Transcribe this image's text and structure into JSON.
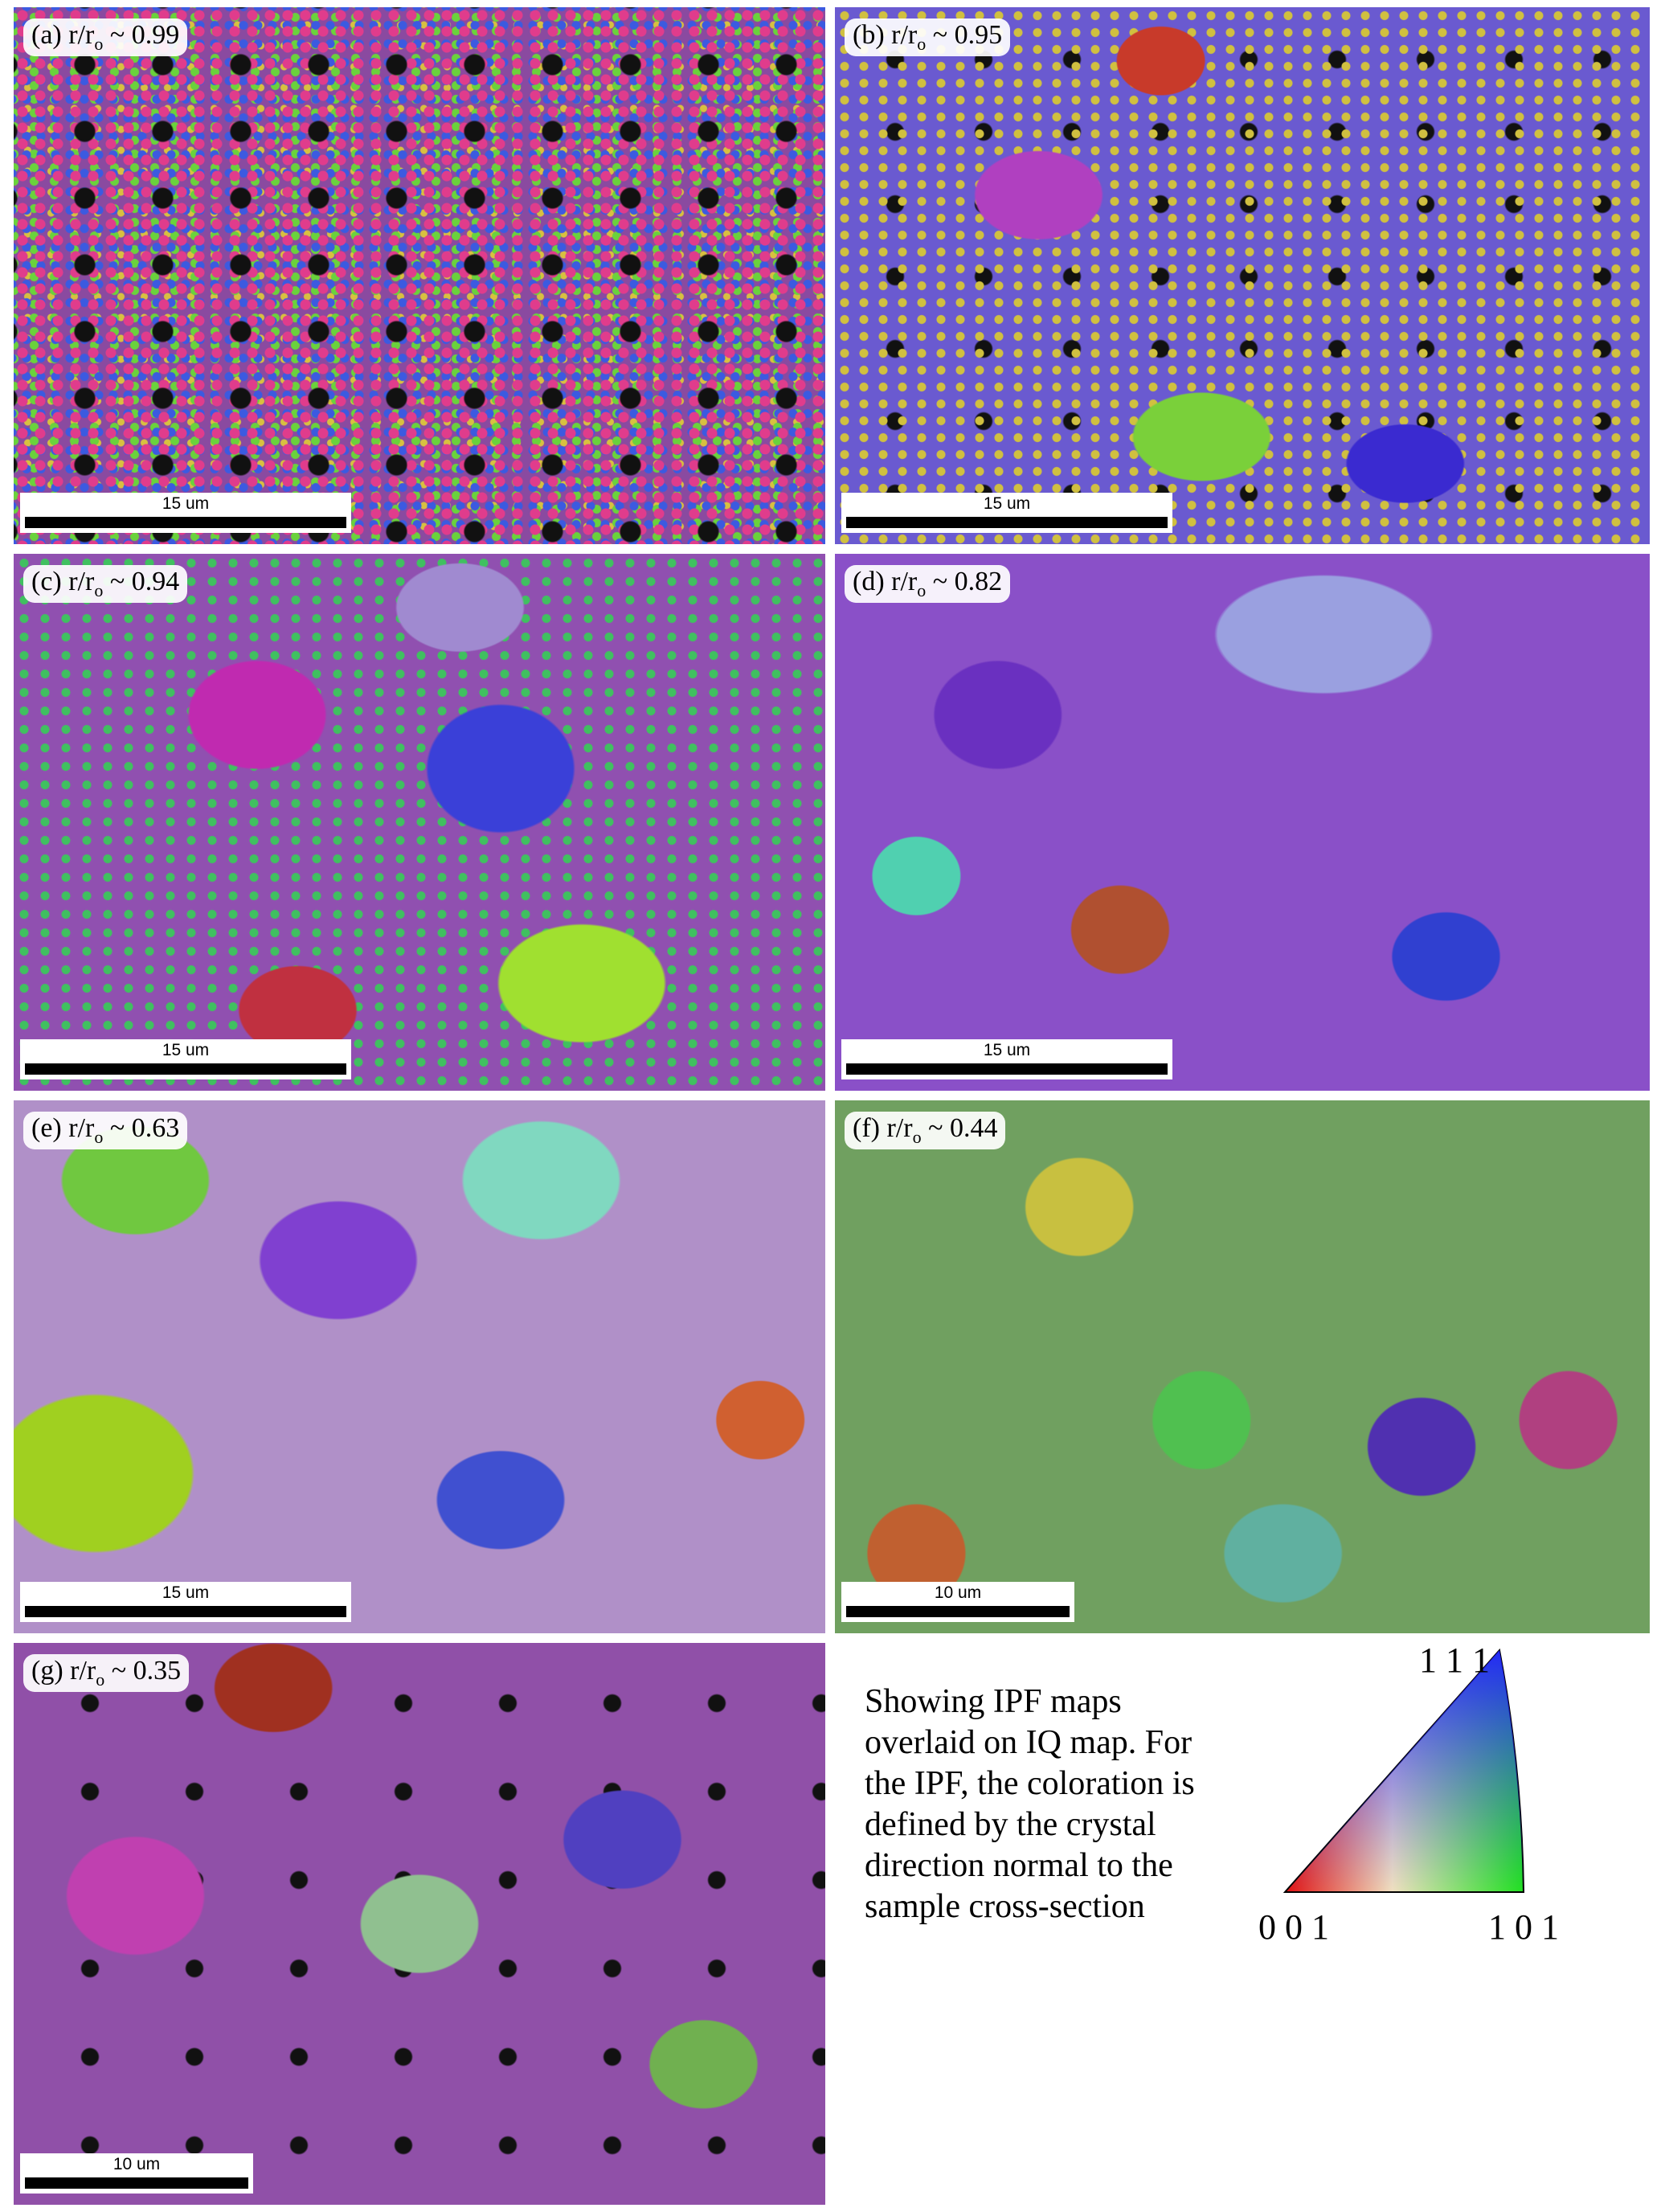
{
  "panels": [
    {
      "prefix": "(a) r/r",
      "sub": "o",
      "suffix": " ~ 0.99",
      "scale": "15 um"
    },
    {
      "prefix": "(b) r/r",
      "sub": "o",
      "suffix": " ~ 0.95",
      "scale": "15 um"
    },
    {
      "prefix": "(c)  r/r",
      "sub": "o",
      "suffix": " ~ 0.94",
      "scale": "15 um"
    },
    {
      "prefix": "(d) r/r",
      "sub": "o",
      "suffix": " ~ 0.82",
      "scale": "15 um"
    },
    {
      "prefix": "(e) r/r",
      "sub": "o",
      "suffix": " ~ 0.63",
      "scale": "15 um"
    },
    {
      "prefix": "(f) r/r",
      "sub": "o",
      "suffix": " ~ 0.44",
      "scale": "10 um"
    },
    {
      "prefix": "(g) r/r",
      "sub": "o",
      "suffix": " ~ 0.35",
      "scale": "10 um"
    }
  ],
  "caption": [
    "Showing IPF maps",
    "overlaid on IQ map. For",
    "the IPF, the coloration is",
    "defined by the crystal",
    "direction normal to the",
    "sample cross-section"
  ],
  "legend": {
    "top": "1 1 1",
    "left": "0 0 1",
    "right": "1 0 1"
  }
}
